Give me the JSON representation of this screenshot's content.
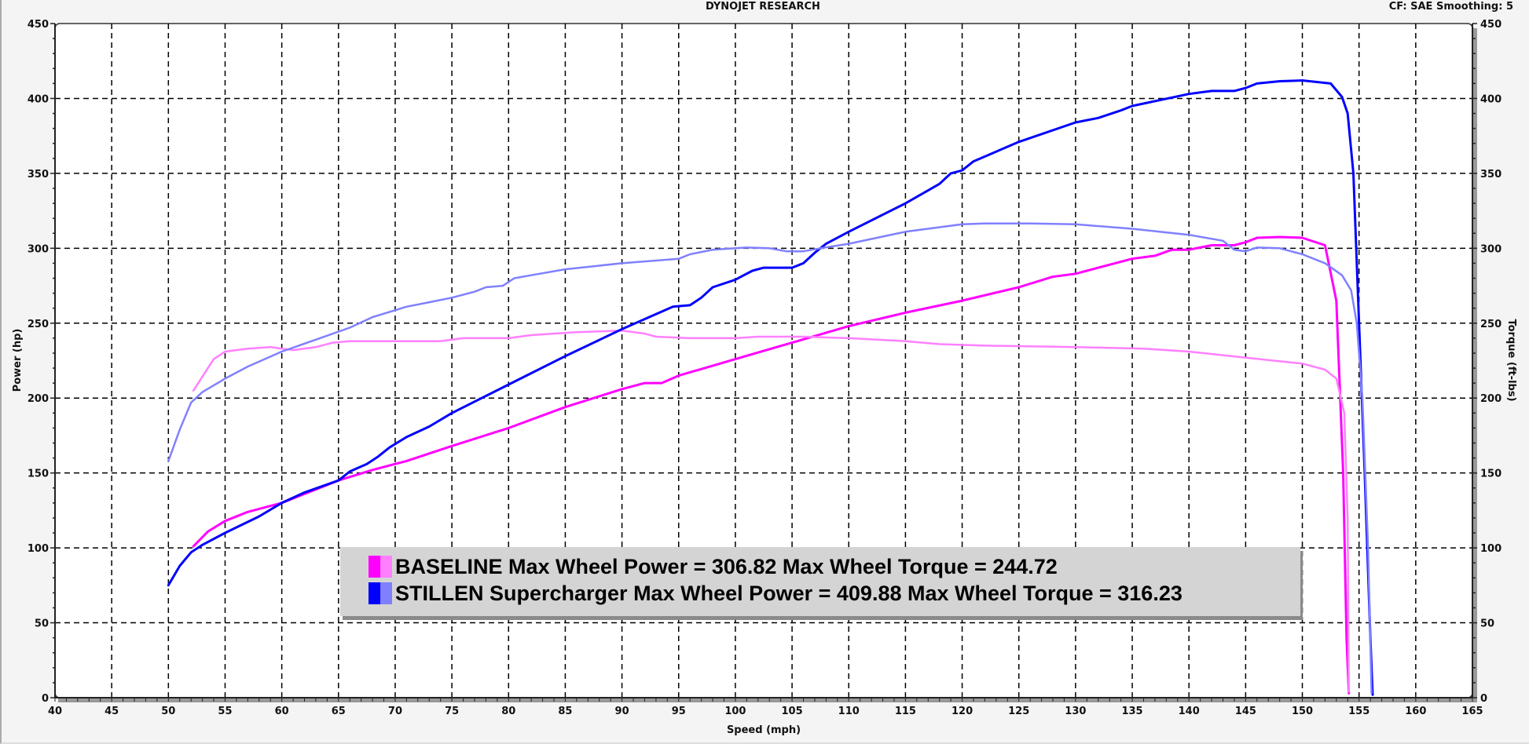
{
  "header": {
    "title": "DYNOJET RESEARCH",
    "settings": "CF: SAE  Smoothing: 5"
  },
  "legend": {
    "rows": [
      {
        "text": "BASELINE Max Wheel Power = 306.82 Max Wheel Torque = 244.72",
        "power_color": "#FF00FF",
        "torque_color": "#FF80FF"
      },
      {
        "text": "STILLEN Supercharger Max Wheel Power = 409.88 Max Wheel Torque = 316.23",
        "power_color": "#0000FF",
        "torque_color": "#8080FF"
      }
    ]
  },
  "chart_data": {
    "type": "line",
    "title": "DYNOJET RESEARCH",
    "subtitle": "CF: SAE  Smoothing: 5",
    "xlabel": "Speed (mph)",
    "ylabel": "Power (hp)",
    "y2label": "Torque (ft-lbs)",
    "xlim": [
      40,
      165
    ],
    "ylim": [
      0,
      450
    ],
    "y2lim": [
      0,
      450
    ],
    "x_ticks": [
      40,
      45,
      50,
      55,
      60,
      65,
      70,
      75,
      80,
      85,
      90,
      95,
      100,
      105,
      110,
      115,
      120,
      125,
      130,
      135,
      140,
      145,
      150,
      155,
      160,
      165
    ],
    "y_ticks": [
      0,
      50,
      100,
      150,
      200,
      250,
      300,
      350,
      400,
      450
    ],
    "grid": true,
    "legend_position": "inside-bottom-center",
    "series": [
      {
        "name": "BASELINE Power",
        "axis": "left",
        "color": "#FF00FF",
        "width": 3,
        "points": [
          [
            52.2,
            101
          ],
          [
            53.5,
            111
          ],
          [
            55,
            118
          ],
          [
            57,
            124
          ],
          [
            60,
            130
          ],
          [
            62,
            136
          ],
          [
            65,
            145
          ],
          [
            68,
            152
          ],
          [
            71,
            158
          ],
          [
            75,
            168
          ],
          [
            80,
            180
          ],
          [
            85,
            194
          ],
          [
            90,
            206
          ],
          [
            92,
            210
          ],
          [
            93.5,
            210
          ],
          [
            95,
            215
          ],
          [
            100,
            226
          ],
          [
            105,
            237
          ],
          [
            110,
            248
          ],
          [
            115,
            257
          ],
          [
            120,
            265
          ],
          [
            125,
            274
          ],
          [
            128,
            281
          ],
          [
            130,
            283
          ],
          [
            135,
            293
          ],
          [
            137,
            295
          ],
          [
            138.5,
            299
          ],
          [
            140,
            299
          ],
          [
            142,
            302
          ],
          [
            144,
            302
          ],
          [
            145,
            304
          ],
          [
            146,
            307
          ],
          [
            148,
            307.5
          ],
          [
            150,
            307
          ],
          [
            152,
            302
          ],
          [
            153,
            265
          ],
          [
            153.6,
            150
          ],
          [
            153.9,
            40
          ],
          [
            154.1,
            3
          ]
        ]
      },
      {
        "name": "BASELINE Torque",
        "axis": "right",
        "color": "#FF80FF",
        "width": 2.5,
        "points": [
          [
            52.2,
            205
          ],
          [
            54,
            226
          ],
          [
            55,
            231
          ],
          [
            57,
            233
          ],
          [
            59,
            234
          ],
          [
            61,
            232
          ],
          [
            63,
            234
          ],
          [
            64.5,
            237
          ],
          [
            66,
            238
          ],
          [
            70,
            238
          ],
          [
            74,
            238
          ],
          [
            76,
            240
          ],
          [
            80,
            240
          ],
          [
            82,
            242
          ],
          [
            86,
            244
          ],
          [
            90,
            245
          ],
          [
            92,
            243
          ],
          [
            93,
            241
          ],
          [
            96,
            240
          ],
          [
            100,
            240
          ],
          [
            102,
            241
          ],
          [
            106,
            241
          ],
          [
            110,
            240
          ],
          [
            115,
            238
          ],
          [
            118,
            236
          ],
          [
            122,
            235
          ],
          [
            130,
            234
          ],
          [
            136,
            233
          ],
          [
            140,
            231
          ],
          [
            145,
            227
          ],
          [
            150,
            223
          ],
          [
            152,
            219
          ],
          [
            153,
            213
          ],
          [
            153.7,
            190
          ],
          [
            154,
            120
          ],
          [
            154.1,
            4
          ]
        ]
      },
      {
        "name": "STILLEN Power",
        "axis": "left",
        "color": "#0000FF",
        "width": 3,
        "points": [
          [
            50,
            75
          ],
          [
            51,
            88
          ],
          [
            52,
            97
          ],
          [
            53,
            102
          ],
          [
            55,
            110
          ],
          [
            58,
            121
          ],
          [
            60,
            130
          ],
          [
            62,
            137
          ],
          [
            63.5,
            141
          ],
          [
            65,
            145
          ],
          [
            66,
            151
          ],
          [
            67.5,
            156
          ],
          [
            68.5,
            161
          ],
          [
            69.5,
            167
          ],
          [
            71,
            174
          ],
          [
            73,
            181
          ],
          [
            75,
            190
          ],
          [
            80,
            209
          ],
          [
            85,
            228
          ],
          [
            90,
            246
          ],
          [
            93,
            256
          ],
          [
            94.5,
            261
          ],
          [
            96,
            262
          ],
          [
            97,
            267
          ],
          [
            98,
            274
          ],
          [
            100,
            279
          ],
          [
            100.5,
            281
          ],
          [
            101.5,
            285
          ],
          [
            102.5,
            287
          ],
          [
            105,
            287
          ],
          [
            106,
            290
          ],
          [
            107,
            297
          ],
          [
            108,
            303
          ],
          [
            110,
            311
          ],
          [
            115,
            330
          ],
          [
            118,
            343
          ],
          [
            119,
            350
          ],
          [
            120,
            352
          ],
          [
            121,
            358
          ],
          [
            125,
            371
          ],
          [
            130,
            384
          ],
          [
            132,
            387
          ],
          [
            134,
            392
          ],
          [
            135,
            395
          ],
          [
            140,
            403
          ],
          [
            142,
            405
          ],
          [
            144,
            405
          ],
          [
            145,
            407
          ],
          [
            146,
            410
          ],
          [
            148,
            411.5
          ],
          [
            150,
            412
          ],
          [
            152.5,
            410
          ],
          [
            153.5,
            401
          ],
          [
            154,
            390
          ],
          [
            154.5,
            350
          ],
          [
            155,
            250
          ],
          [
            155.5,
            150
          ],
          [
            156,
            40
          ],
          [
            156.2,
            2
          ]
        ]
      },
      {
        "name": "STILLEN Torque",
        "axis": "right",
        "color": "#8080FF",
        "width": 2.5,
        "points": [
          [
            50,
            158
          ],
          [
            51,
            179
          ],
          [
            52,
            197
          ],
          [
            53,
            204
          ],
          [
            55,
            213
          ],
          [
            57,
            221
          ],
          [
            60,
            231
          ],
          [
            63,
            239
          ],
          [
            66,
            247
          ],
          [
            68,
            254
          ],
          [
            71,
            261
          ],
          [
            73,
            264
          ],
          [
            75,
            267
          ],
          [
            77,
            271
          ],
          [
            78,
            274
          ],
          [
            79.5,
            275
          ],
          [
            80.5,
            280
          ],
          [
            82,
            282
          ],
          [
            85,
            286
          ],
          [
            90,
            290
          ],
          [
            95,
            293
          ],
          [
            96,
            296
          ],
          [
            98,
            299
          ],
          [
            100,
            300
          ],
          [
            101,
            300.5
          ],
          [
            103,
            300
          ],
          [
            104.5,
            298
          ],
          [
            106,
            298
          ],
          [
            107.5,
            300
          ],
          [
            110,
            303
          ],
          [
            115,
            311
          ],
          [
            120,
            316
          ],
          [
            122,
            316.5
          ],
          [
            126,
            316.5
          ],
          [
            130,
            316
          ],
          [
            135,
            313
          ],
          [
            140,
            309
          ],
          [
            143,
            305
          ],
          [
            144,
            299
          ],
          [
            145,
            298
          ],
          [
            146,
            300.5
          ],
          [
            148,
            300
          ],
          [
            150,
            296
          ],
          [
            152,
            290
          ],
          [
            153.5,
            282
          ],
          [
            154.3,
            272
          ],
          [
            154.8,
            250
          ],
          [
            155.3,
            200
          ],
          [
            155.8,
            100
          ],
          [
            156.1,
            3
          ]
        ]
      }
    ]
  },
  "axes": {
    "xlabel": "Speed (mph)",
    "ylabel": "Power (hp)",
    "y2label": "Torque (ft-lbs)"
  }
}
